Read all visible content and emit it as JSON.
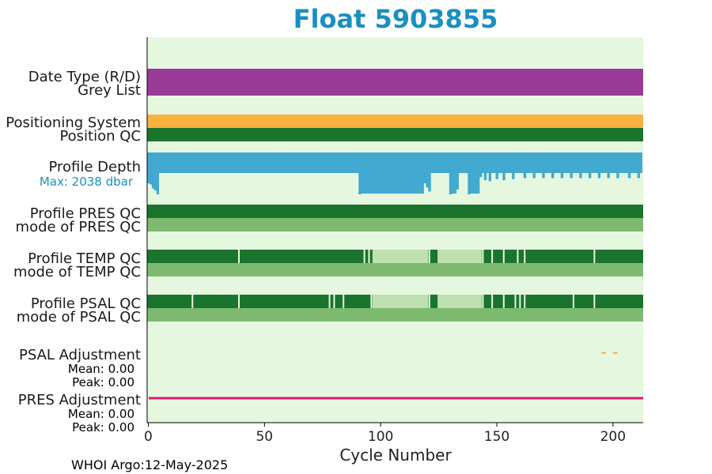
{
  "chart_data": {
    "type": "timeline",
    "title": "Float 5903855",
    "xlabel": "Cycle Number",
    "xlim": [
      -0.5,
      213
    ],
    "xticks": [
      0,
      50,
      100,
      150,
      200
    ],
    "grid": false,
    "footer": "WHOI Argo:12-May-2025",
    "colors": {
      "title": "#1a8fc0",
      "background": "#e6f7e0",
      "data_type": "#993a96",
      "positioning": "#f8b23f",
      "qc_good": "#1a742e",
      "qc_probably_good": "#bfe0b0",
      "mode": "#7dba6f",
      "depth": "#42a9d0",
      "psal_adjustment": "#f5a030",
      "pres_adjustment": "#d81b70"
    },
    "rows": [
      {
        "key": "data_type",
        "label": "Date Type (R/D)"
      },
      {
        "key": "grey_list",
        "label": "Grey List"
      },
      {
        "key": "positioning",
        "label": "Positioning System"
      },
      {
        "key": "position_qc",
        "label": "Position QC"
      },
      {
        "key": "profile_depth",
        "label": "Profile Depth",
        "sublabel": "Max: 2038 dbar"
      },
      {
        "key": "pres_qc",
        "label": "Profile PRES QC"
      },
      {
        "key": "pres_mode",
        "label": "mode of PRES QC"
      },
      {
        "key": "temp_qc",
        "label": "Profile TEMP QC"
      },
      {
        "key": "temp_mode",
        "label": "mode of TEMP QC"
      },
      {
        "key": "psal_qc",
        "label": "Profile PSAL QC"
      },
      {
        "key": "psal_mode",
        "label": "mode of PSAL QC"
      },
      {
        "key": "psal_adj",
        "label": "PSAL Adjustment",
        "stats": [
          "Mean: 0.00",
          "Peak: 0.00"
        ]
      },
      {
        "key": "pres_adj",
        "label": "PRES Adjustment",
        "stats": [
          "Mean: 0.00",
          "Peak: 0.00"
        ]
      }
    ],
    "temp_qc_probably_good_ranges": [
      [
        97,
        120
      ],
      [
        125,
        143
      ]
    ],
    "temp_qc_gaps": [
      39,
      93,
      95,
      121,
      144,
      148,
      153,
      159,
      162,
      192
    ],
    "psal_qc_probably_good_ranges": [
      [
        97,
        120
      ],
      [
        125,
        143
      ]
    ],
    "psal_qc_gaps": [
      19,
      39,
      78,
      80,
      84,
      96,
      121,
      144,
      148,
      153,
      158,
      160,
      162,
      183,
      192
    ],
    "profile_depth_max_dbar": 2038,
    "profile_depth_shallow_cycles": [
      {
        "x": 0,
        "d": 1500
      },
      {
        "x": 1,
        "d": 1550
      },
      {
        "x": 2,
        "d": 1750
      },
      {
        "x": 3,
        "d": 1850
      },
      {
        "x": 4,
        "d": 2038
      },
      {
        "x": 91,
        "d": 2038
      },
      {
        "x": 100,
        "d": 2000
      },
      {
        "x": 119,
        "d": 1500
      },
      {
        "x": 120,
        "d": 1700
      },
      {
        "x": 121,
        "d": 1900
      },
      {
        "x": 130,
        "d": 2038
      },
      {
        "x": 133,
        "d": 1800
      },
      {
        "x": 138,
        "d": 2038
      },
      {
        "x": 143,
        "d": 1200
      },
      {
        "x": 145,
        "d": 1350
      },
      {
        "x": 147,
        "d": 1400
      },
      {
        "x": 150,
        "d": 1300
      },
      {
        "x": 153,
        "d": 1350
      },
      {
        "x": 157,
        "d": 1300
      },
      {
        "x": 162,
        "d": 1250
      },
      {
        "x": 166,
        "d": 1250
      },
      {
        "x": 170,
        "d": 1250
      },
      {
        "x": 174,
        "d": 1250
      },
      {
        "x": 178,
        "d": 1250
      },
      {
        "x": 182,
        "d": 1250
      },
      {
        "x": 186,
        "d": 1250
      },
      {
        "x": 190,
        "d": 1250
      },
      {
        "x": 194,
        "d": 1250
      },
      {
        "x": 198,
        "d": 1250
      },
      {
        "x": 202,
        "d": 1250
      },
      {
        "x": 207,
        "d": 1250
      },
      {
        "x": 211,
        "d": 1250
      }
    ],
    "psal_adjustment_points": [
      196,
      201
    ]
  }
}
